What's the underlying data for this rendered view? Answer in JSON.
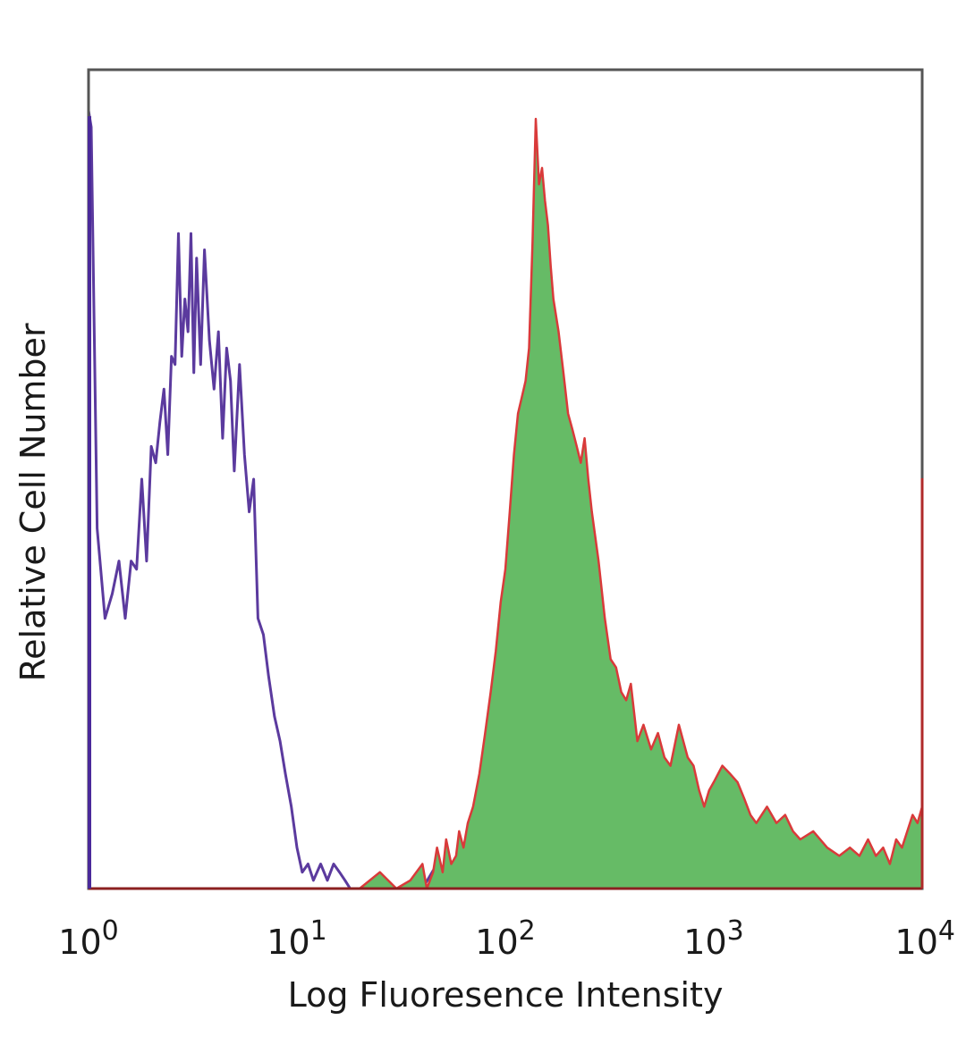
{
  "chart_data": {
    "type": "area",
    "title": "",
    "xlabel": "Log Fluoresence Intensity",
    "ylabel": "Relative Cell Number",
    "xscale": "log",
    "xlim": [
      1,
      10000
    ],
    "ylim": [
      0,
      100
    ],
    "x_ticks": [
      {
        "base": "10",
        "exp": "0",
        "value": 1
      },
      {
        "base": "10",
        "exp": "1",
        "value": 10
      },
      {
        "base": "10",
        "exp": "2",
        "value": 100
      },
      {
        "base": "10",
        "exp": "3",
        "value": 1000
      },
      {
        "base": "10",
        "exp": "4",
        "value": 10000
      }
    ],
    "grid": false,
    "legend": "none",
    "series": [
      {
        "style": "outline",
        "color": "#5b3a9e",
        "x": [
          1,
          1.03,
          1.1,
          1.2,
          1.3,
          1.4,
          1.5,
          1.6,
          1.7,
          1.8,
          1.9,
          2.0,
          2.1,
          2.2,
          2.3,
          2.4,
          2.5,
          2.6,
          2.7,
          2.8,
          2.9,
          3.0,
          3.1,
          3.2,
          3.3,
          3.45,
          3.6,
          3.8,
          4.0,
          4.2,
          4.4,
          4.6,
          4.8,
          5.0,
          5.3,
          5.6,
          5.9,
          6.2,
          6.5,
          6.9,
          7.3,
          7.8,
          8.3,
          8.8,
          9.4,
          10,
          10.6,
          11.3,
          12,
          13,
          14,
          15,
          16,
          17,
          18,
          20,
          22,
          25,
          30,
          40,
          47,
          50,
          60,
          72,
          74,
          80,
          100,
          120,
          130,
          140,
          150,
          160,
          200,
          300,
          500,
          800,
          900,
          920,
          1000,
          2000,
          5000,
          10000
        ],
        "values": [
          95,
          93,
          44,
          33,
          36,
          40,
          33,
          40,
          39,
          50,
          40,
          54,
          52,
          57,
          61,
          53,
          65,
          64,
          80,
          65,
          72,
          68,
          80,
          63,
          77,
          64,
          78,
          67,
          61,
          68,
          55,
          66,
          62,
          51,
          64,
          53,
          46,
          50,
          33,
          31,
          26,
          21,
          18,
          14,
          10,
          5,
          2,
          3,
          1,
          3,
          1,
          3,
          2,
          1,
          0,
          0,
          0,
          0,
          0,
          0,
          3,
          0,
          0,
          0,
          3,
          0,
          0,
          0,
          0,
          3,
          0,
          3,
          0,
          0,
          0,
          0,
          3,
          0,
          0,
          0,
          0,
          0
        ]
      },
      {
        "style": "filled",
        "color": "#d93a3a",
        "fill": "#66bb66",
        "x": [
          1,
          20,
          25,
          30,
          35,
          40,
          42,
          45,
          47,
          50,
          52,
          55,
          58,
          60,
          63,
          66,
          70,
          75,
          80,
          85,
          90,
          95,
          100,
          105,
          110,
          115,
          120,
          125,
          130,
          135,
          140,
          145,
          150,
          155,
          160,
          165,
          170,
          180,
          190,
          200,
          210,
          220,
          230,
          240,
          250,
          260,
          280,
          300,
          320,
          340,
          360,
          380,
          400,
          430,
          460,
          500,
          540,
          580,
          620,
          680,
          750,
          800,
          850,
          900,
          950,
          1000,
          1100,
          1200,
          1300,
          1400,
          1500,
          1600,
          1800,
          2000,
          2200,
          2400,
          2600,
          3000,
          3500,
          4000,
          4500,
          5000,
          5500,
          6000,
          6500,
          7000,
          7500,
          8000,
          9000,
          9500,
          10000
        ],
        "values": [
          0,
          0,
          2,
          0,
          1,
          3,
          0,
          2,
          5,
          2,
          6,
          3,
          4,
          7,
          5,
          8,
          10,
          14,
          19,
          24,
          29,
          35,
          39,
          46,
          53,
          58,
          60,
          62,
          66,
          79,
          94,
          86,
          88,
          84,
          81,
          76,
          72,
          68,
          63,
          58,
          56,
          54,
          52,
          55,
          50,
          46,
          40,
          33,
          28,
          27,
          24,
          23,
          25,
          18,
          20,
          17,
          19,
          16,
          15,
          20,
          16,
          15,
          12,
          10,
          12,
          13,
          15,
          14,
          13,
          11,
          9,
          8,
          10,
          8,
          9,
          7,
          6,
          7,
          5,
          4,
          5,
          4,
          6,
          4,
          5,
          3,
          6,
          5,
          9,
          8,
          10
        ]
      }
    ]
  }
}
